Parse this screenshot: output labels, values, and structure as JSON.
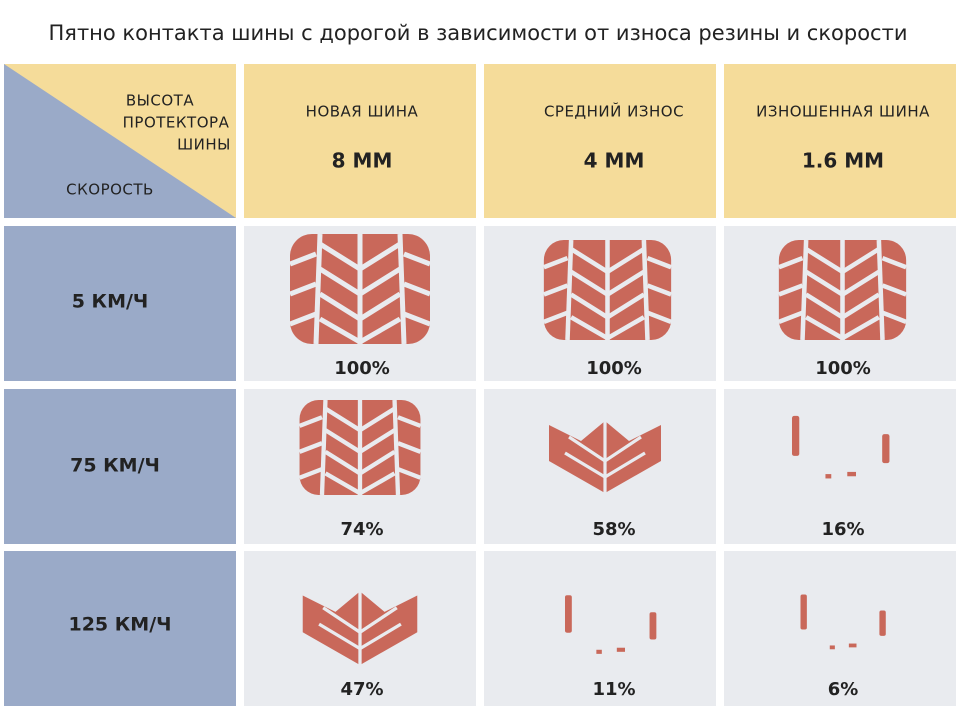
{
  "title": "Пятно контакта шины с дорогой в зависимости от износа резины и скорости",
  "corner": {
    "tread_label": [
      "ВЫСОТА",
      "ПРОТЕКТОРА",
      "ШИНЫ"
    ],
    "speed_label": "СКОРОСТЬ"
  },
  "columns": [
    {
      "label": "НОВАЯ ШИНА",
      "depth": "8 ММ"
    },
    {
      "label": "СРЕДНИЙ ИЗНОС",
      "depth": "4 ММ"
    },
    {
      "label": "ИЗНОШЕННАЯ ШИНА",
      "depth": "1.6 ММ"
    }
  ],
  "rows": [
    {
      "speed": "5 КМ/Ч",
      "cells": [
        "100%",
        "100%",
        "100%"
      ]
    },
    {
      "speed": "75 КМ/Ч",
      "cells": [
        "74%",
        "58%",
        "16%"
      ]
    },
    {
      "speed": "125 КМ/Ч",
      "cells": [
        "47%",
        "11%",
        "6%"
      ]
    }
  ]
}
